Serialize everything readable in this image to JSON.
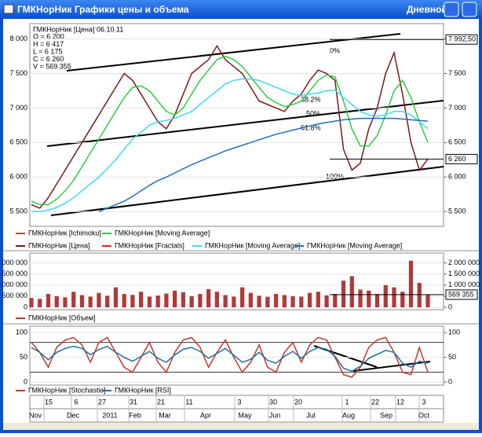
{
  "window": {
    "title": "ГМКНорНик Графики цены и объема",
    "timeframe": "Дневной"
  },
  "info": {
    "header": "ГМКНорНик [Цена] 06.10.11",
    "lines": [
      "O = 6 200",
      "H = 6 417",
      "L = 6 175",
      "C = 6 260",
      "V = 569 355"
    ]
  },
  "fibonacci": [
    "0%",
    "38.2%",
    "50%",
    "61.8%",
    "100%"
  ],
  "x_axis": {
    "days": [
      "15",
      "6",
      "27",
      "31",
      "21",
      "11",
      "3",
      "30",
      "20",
      "1",
      "22",
      "12",
      "3"
    ],
    "months": [
      "Nov",
      "Dec",
      "2011",
      "Feb",
      "Mar",
      "Apr",
      "May",
      "Jun",
      "Jul",
      "Aug",
      "Sep",
      "Oct"
    ]
  },
  "chart_data": [
    {
      "type": "line",
      "ylim": [
        5320,
        8200
      ],
      "yticks": [
        {
          "value": 5500,
          "label": "5 500"
        },
        {
          "value": 6000,
          "label": "6 000"
        },
        {
          "value": 6500,
          "label": "6 500"
        },
        {
          "value": 7000,
          "label": "7 000"
        },
        {
          "value": 7500,
          "label": "7 500"
        },
        {
          "value": 8000,
          "label": "8 000"
        }
      ],
      "markers": [
        {
          "value": 7992.5,
          "label": "7 992,50"
        },
        {
          "value": 6260,
          "label": "6 260"
        }
      ],
      "indicators": [
        {
          "name": "ГМКНорНик [Ichimoku]",
          "color": "#a0522d"
        },
        {
          "name": "ГМКНорНик [Fractals]",
          "color": "#e0201c"
        }
      ],
      "series": [
        {
          "name": "ГМКНорНик [Цена]",
          "color": "#7a1a1a",
          "values": [
            5600,
            5550,
            5700,
            5900,
            6100,
            6300,
            6500,
            6700,
            6900,
            7100,
            7300,
            7500,
            7400,
            7200,
            7000,
            6800,
            6700,
            6900,
            7200,
            7500,
            7600,
            7700,
            7900,
            7700,
            7600,
            7500,
            7300,
            7100,
            7050,
            7000,
            6950,
            7100,
            7200,
            7400,
            7550,
            7500,
            7400,
            6400,
            6100,
            6200,
            6700,
            7000,
            7500,
            7800,
            7200,
            6500,
            6100,
            6260
          ]
        },
        {
          "name": "ГМКНорНик [Moving Average]",
          "color": "#2ecc40",
          "values": [
            5650,
            5600,
            5600,
            5680,
            5800,
            5950,
            6150,
            6350,
            6550,
            6750,
            6950,
            7150,
            7300,
            7320,
            7250,
            7100,
            6950,
            6900,
            7000,
            7200,
            7400,
            7550,
            7700,
            7750,
            7700,
            7600,
            7450,
            7300,
            7150,
            7080,
            7020,
            7050,
            7100,
            7250,
            7400,
            7480,
            7450,
            7100,
            6700,
            6450,
            6450,
            6600,
            6900,
            7250,
            7400,
            7150,
            6800,
            6500
          ]
        },
        {
          "name": "ГМКНорНик [Moving Average]",
          "color": "#40d8f0",
          "values": [
            5500,
            5500,
            5520,
            5560,
            5620,
            5700,
            5800,
            5900,
            6000,
            6120,
            6250,
            6400,
            6550,
            6650,
            6750,
            6800,
            6820,
            6850,
            6900,
            6950,
            7050,
            7150,
            7250,
            7350,
            7400,
            7420,
            7420,
            7400,
            7350,
            7300,
            7250,
            7200,
            7180,
            7200,
            7220,
            7250,
            7260,
            7150,
            7050,
            6950,
            6900,
            6880,
            6900,
            6950,
            6950,
            6900,
            6800,
            6700
          ]
        },
        {
          "name": "ГМКНорНик [Moving Average]",
          "color": "#1f6fc0",
          "values": [
            null,
            null,
            null,
            null,
            null,
            null,
            null,
            null,
            5500,
            5550,
            5600,
            5650,
            5720,
            5800,
            5880,
            5950,
            6000,
            6060,
            6120,
            6180,
            6230,
            6280,
            6330,
            6380,
            6420,
            6460,
            6500,
            6540,
            6580,
            6620,
            6650,
            6680,
            6710,
            6740,
            6770,
            6790,
            6810,
            6830,
            6840,
            6850,
            6850,
            6850,
            6850,
            6850,
            6840,
            6830,
            6820,
            6810
          ]
        }
      ]
    },
    {
      "type": "bar",
      "ylim": [
        0,
        2300000
      ],
      "yticks": [
        {
          "value": 0,
          "label": "0"
        },
        {
          "value": 500000,
          "label": "500 000"
        },
        {
          "value": 1000000,
          "label": "1 000 000"
        },
        {
          "value": 1500000,
          "label": "1 500 000"
        },
        {
          "value": 2000000,
          "label": "2 000 000"
        }
      ],
      "markers": [
        {
          "value": 569355,
          "label": "569 355"
        }
      ],
      "series": [
        {
          "name": "ГМКНорНик [Объем]",
          "color": "#b03a3a",
          "values": [
            420000,
            380000,
            600000,
            500000,
            450000,
            700000,
            550000,
            480000,
            650000,
            520000,
            900000,
            600000,
            560000,
            700000,
            480000,
            530000,
            620000,
            750000,
            680000,
            500000,
            600000,
            820000,
            700000,
            550000,
            480000,
            900000,
            650000,
            520000,
            470000,
            600000,
            550000,
            500000,
            480000,
            650000,
            700000,
            540000,
            600000,
            1200000,
            1400000,
            800000,
            750000,
            600000,
            1000000,
            900000,
            700000,
            2100000,
            1100000,
            569355
          ]
        }
      ]
    },
    {
      "type": "line",
      "ylim": [
        -6,
        108
      ],
      "yticks": [
        0,
        50,
        100
      ],
      "levels": [
        20,
        80
      ],
      "series": [
        {
          "name": "ГМКНорНик [Stochastic]",
          "color": "#c0392b",
          "values": [
            80,
            60,
            30,
            70,
            85,
            90,
            75,
            40,
            80,
            90,
            60,
            30,
            20,
            50,
            80,
            40,
            20,
            60,
            85,
            90,
            70,
            30,
            60,
            85,
            50,
            20,
            40,
            75,
            30,
            20,
            60,
            80,
            40,
            75,
            90,
            85,
            50,
            15,
            10,
            30,
            70,
            85,
            90,
            60,
            20,
            15,
            70,
            20
          ]
        },
        {
          "name": "ГМКНорНик [RSI]",
          "color": "#1f6fa0",
          "values": [
            70,
            60,
            45,
            60,
            68,
            72,
            68,
            55,
            66,
            72,
            60,
            50,
            42,
            52,
            62,
            48,
            40,
            55,
            66,
            70,
            62,
            48,
            58,
            68,
            54,
            40,
            46,
            60,
            44,
            38,
            52,
            62,
            48,
            62,
            70,
            66,
            52,
            28,
            22,
            32,
            48,
            56,
            64,
            60,
            38,
            30,
            42,
            38
          ]
        }
      ]
    }
  ]
}
